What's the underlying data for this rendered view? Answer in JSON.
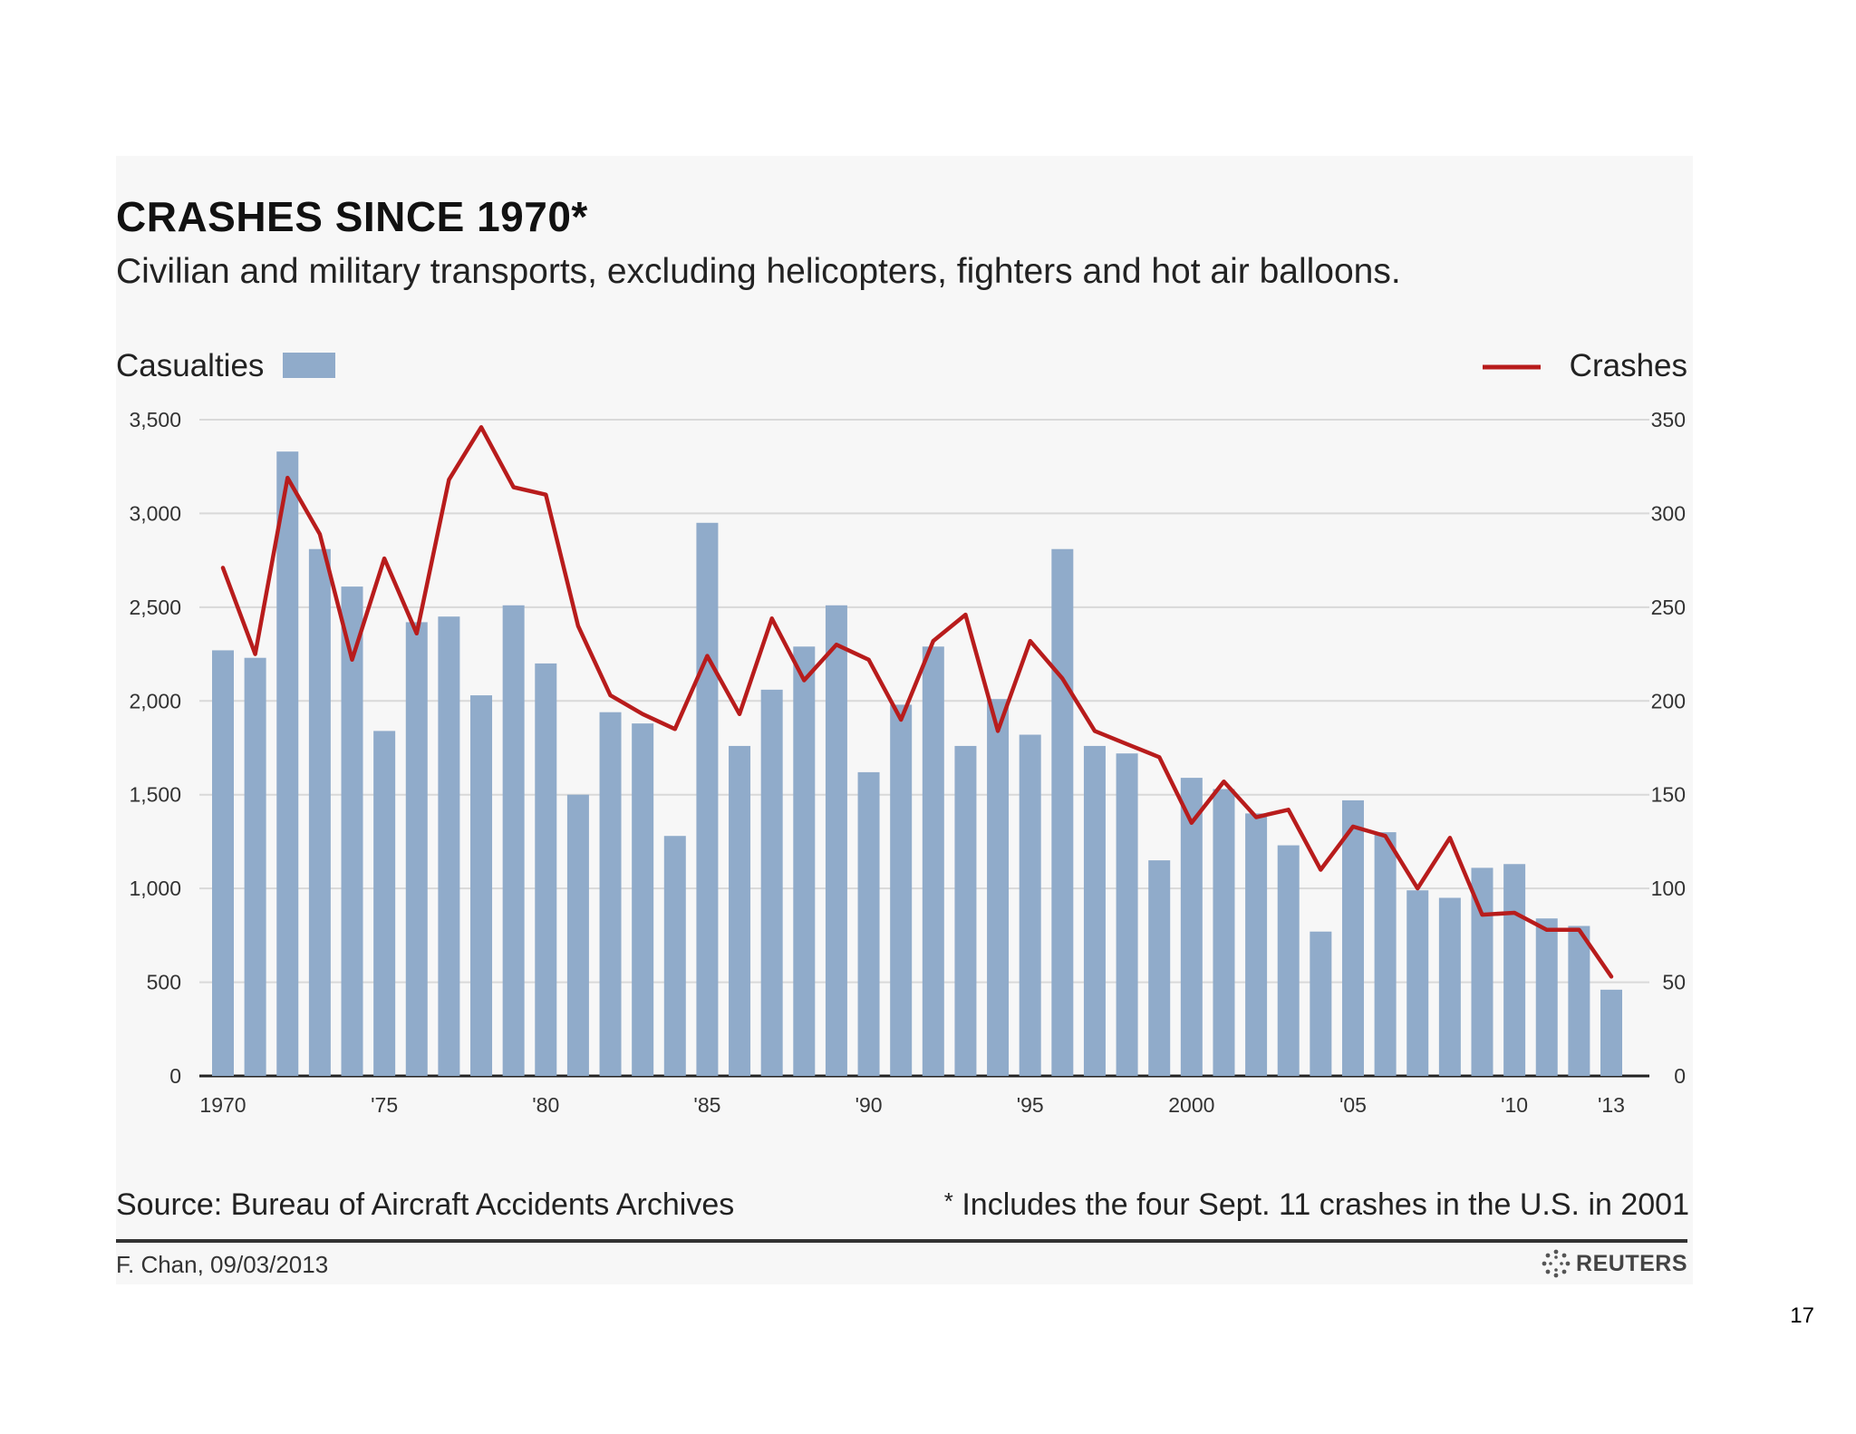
{
  "header": {
    "title": "CRASHES SINCE 1970*",
    "subtitle": "Civilian and military transports, excluding helicopters, fighters and hot air balloons."
  },
  "footer": {
    "source": "Source: Bureau of Aircraft Accidents Archives",
    "footnote_mark": "*",
    "footnote": "Includes the four Sept. 11 crashes in the U.S. in 2001",
    "byline": "F. Chan, 09/03/2013",
    "brand": "REUTERS",
    "brand_icon": "reuters-logo-icon",
    "page_number": "17"
  },
  "colors": {
    "bars": "#90abca",
    "line": "#b81c1c",
    "grid": "#d9d9d9",
    "panel": "#f7f7f7"
  },
  "chart_data": {
    "type": "bar",
    "title": "CRASHES SINCE 1970*",
    "subtitle": "Civilian and military transports, excluding helicopters, fighters and hot air balloons.",
    "years": [
      1970,
      1971,
      1972,
      1973,
      1974,
      1975,
      1976,
      1977,
      1978,
      1979,
      1980,
      1981,
      1982,
      1983,
      1984,
      1985,
      1986,
      1987,
      1988,
      1989,
      1990,
      1991,
      1992,
      1993,
      1994,
      1995,
      1996,
      1997,
      1998,
      1999,
      2000,
      2001,
      2002,
      2003,
      2004,
      2005,
      2006,
      2007,
      2008,
      2009,
      2010,
      2011,
      2012,
      2013
    ],
    "x_tick_labels": [
      {
        "year": 1970,
        "label": "1970"
      },
      {
        "year": 1975,
        "label": "'75"
      },
      {
        "year": 1980,
        "label": "'80"
      },
      {
        "year": 1985,
        "label": "'85"
      },
      {
        "year": 1990,
        "label": "'90"
      },
      {
        "year": 1995,
        "label": "'95"
      },
      {
        "year": 2000,
        "label": "2000"
      },
      {
        "year": 2005,
        "label": "'05"
      },
      {
        "year": 2010,
        "label": "'10"
      },
      {
        "year": 2013,
        "label": "'13"
      }
    ],
    "series": [
      {
        "name": "Casualties",
        "type": "bar",
        "axis": "left",
        "values": [
          2270,
          2230,
          3330,
          2810,
          2610,
          1840,
          2420,
          2450,
          2030,
          2510,
          2200,
          1500,
          1940,
          1880,
          1280,
          2950,
          1760,
          2060,
          2290,
          2510,
          1620,
          1980,
          2290,
          1760,
          2010,
          1820,
          2810,
          1760,
          1720,
          1150,
          1590,
          1530,
          1400,
          1230,
          770,
          1470,
          1300,
          990,
          950,
          1110,
          1130,
          840,
          800,
          460
        ]
      },
      {
        "name": "Crashes",
        "type": "line",
        "axis": "right",
        "values": [
          271,
          225,
          319,
          289,
          222,
          276,
          236,
          318,
          346,
          314,
          310,
          240,
          203,
          193,
          185,
          224,
          193,
          244,
          211,
          230,
          222,
          190,
          232,
          246,
          184,
          232,
          212,
          184,
          177,
          170,
          135,
          157,
          138,
          142,
          110,
          133,
          128,
          100,
          127,
          86,
          87,
          78,
          78,
          53
        ]
      }
    ],
    "left_axis": {
      "label": "Casualties",
      "ylim": [
        0,
        3500
      ],
      "ticks": [
        "0",
        "500",
        "1,000",
        "1,500",
        "2,000",
        "2,500",
        "3,000",
        "3,500"
      ]
    },
    "right_axis": {
      "label": "Crashes",
      "ylim": [
        0,
        350
      ],
      "ticks": [
        "0",
        "50",
        "100",
        "150",
        "200",
        "250",
        "300",
        "350"
      ]
    },
    "grid": true,
    "legend": [
      {
        "name": "Casualties",
        "marker": "bar",
        "position": "top-left"
      },
      {
        "name": "Crashes",
        "marker": "line",
        "position": "top-right"
      }
    ]
  }
}
